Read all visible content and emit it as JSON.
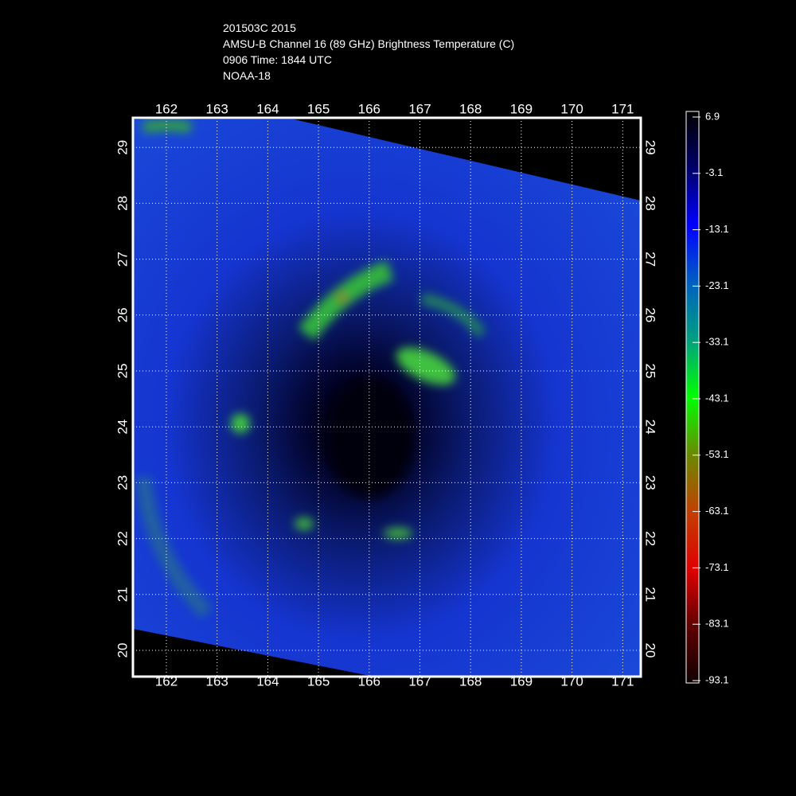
{
  "title": [
    "201503C 2015",
    "AMSU-B Channel 16 (89 GHz) Brightness Temperature (C)",
    "0906 Time: 1844 UTC",
    "NOAA-18"
  ],
  "map": {
    "lon_ticks": [
      162,
      163,
      164,
      165,
      166,
      167,
      168,
      169,
      170,
      171
    ],
    "lat_ticks": [
      20,
      21,
      22,
      23,
      24,
      25,
      26,
      27,
      28,
      29
    ]
  },
  "colorbar": {
    "ticks": [
      6.9,
      -3.1,
      -13.1,
      -23.1,
      -33.1,
      -43.1,
      -53.1,
      -63.1,
      -73.1,
      -83.1,
      -93.1
    ]
  }
}
